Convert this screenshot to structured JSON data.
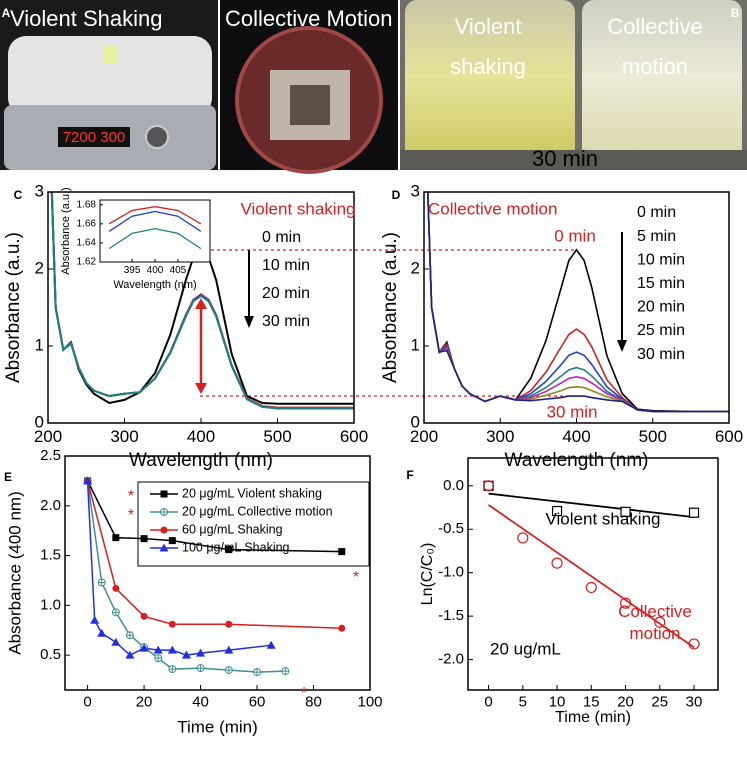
{
  "photos": {
    "labels": [
      "Violent Shaking",
      "Collective Motion",
      "Violent shaking",
      "Collective motion",
      "30 min"
    ]
  },
  "panel_labels": [
    "A",
    "B",
    "C",
    "D",
    "E",
    "F"
  ],
  "chart_data": [
    {
      "type": "line",
      "x_label": "Wavelength (nm)",
      "y_label": "Absorbance (a.u.)",
      "xlim": [
        200,
        600
      ],
      "ylim": [
        0,
        3
      ],
      "xticks": [
        200,
        300,
        400,
        500,
        600
      ],
      "yticks": [
        0,
        1,
        2,
        3
      ],
      "x": [
        205,
        210,
        220,
        230,
        240,
        250,
        260,
        280,
        300,
        320,
        340,
        360,
        380,
        390,
        400,
        410,
        420,
        440,
        460,
        480,
        500,
        550,
        600
      ],
      "series": [
        {
          "name": "0 min",
          "color": "#000000",
          "values": [
            3.0,
            1.5,
            0.95,
            1.05,
            0.7,
            0.5,
            0.38,
            0.26,
            0.3,
            0.4,
            0.65,
            1.15,
            1.85,
            2.15,
            2.25,
            2.15,
            1.85,
            0.9,
            0.35,
            0.26,
            0.25,
            0.25,
            0.25
          ]
        },
        {
          "name": "10 min",
          "color": "#d62020",
          "values": [
            3.0,
            1.5,
            0.95,
            1.05,
            0.72,
            0.52,
            0.42,
            0.35,
            0.38,
            0.4,
            0.58,
            0.92,
            1.4,
            1.6,
            1.67,
            1.6,
            1.4,
            0.75,
            0.32,
            0.22,
            0.2,
            0.2,
            0.2
          ]
        },
        {
          "name": "20 min",
          "color": "#2040d0",
          "values": [
            3.0,
            1.5,
            0.95,
            1.04,
            0.72,
            0.52,
            0.42,
            0.35,
            0.38,
            0.4,
            0.58,
            0.92,
            1.39,
            1.59,
            1.66,
            1.59,
            1.39,
            0.75,
            0.31,
            0.21,
            0.19,
            0.19,
            0.19
          ]
        },
        {
          "name": "30 min",
          "color": "#208080",
          "values": [
            3.0,
            1.5,
            0.95,
            1.03,
            0.72,
            0.52,
            0.42,
            0.35,
            0.38,
            0.4,
            0.58,
            0.91,
            1.38,
            1.58,
            1.65,
            1.58,
            1.38,
            0.74,
            0.31,
            0.21,
            0.19,
            0.19,
            0.19
          ]
        }
      ],
      "annotations": [
        {
          "text": "Violent shaking",
          "color": "#d62020"
        }
      ]
    },
    {
      "type": "line",
      "x_label": "Wavelength (nm)",
      "y_label": "Absorbance (a.u.)",
      "xlim": [
        388,
        412
      ],
      "ylim": [
        1.62,
        1.685
      ],
      "xticks": [
        395,
        400,
        405
      ],
      "yticks": [
        1.62,
        1.64,
        1.66,
        1.68
      ],
      "x": [
        390,
        395,
        400,
        405,
        410
      ],
      "series": [
        {
          "color": "#d62020",
          "values": [
            1.66,
            1.674,
            1.678,
            1.674,
            1.66
          ]
        },
        {
          "color": "#2040d0",
          "values": [
            1.652,
            1.668,
            1.673,
            1.668,
            1.652
          ]
        },
        {
          "color": "#208080",
          "values": [
            1.634,
            1.65,
            1.655,
            1.65,
            1.634
          ]
        }
      ]
    },
    {
      "type": "line",
      "x_label": "Wavelength (nm)",
      "y_label": "Absorbance (a.u.)",
      "xlim": [
        200,
        600
      ],
      "ylim": [
        0,
        3
      ],
      "xticks": [
        200,
        300,
        400,
        500,
        600
      ],
      "yticks": [
        0,
        1,
        2,
        3
      ],
      "x": [
        205,
        210,
        220,
        230,
        240,
        250,
        260,
        280,
        300,
        320,
        340,
        360,
        380,
        390,
        400,
        410,
        420,
        440,
        460,
        480,
        500,
        550,
        600
      ],
      "series": [
        {
          "name": "0 min",
          "color": "#000000",
          "values": [
            3.0,
            1.5,
            0.92,
            1.05,
            0.7,
            0.48,
            0.38,
            0.28,
            0.35,
            0.3,
            0.58,
            1.07,
            1.76,
            2.11,
            2.25,
            2.11,
            1.76,
            0.87,
            0.38,
            0.18,
            0.16,
            0.15,
            0.15
          ]
        },
        {
          "name": "5 min",
          "color": "#d62020",
          "values": [
            3.0,
            1.5,
            0.92,
            1.03,
            0.7,
            0.48,
            0.38,
            0.28,
            0.35,
            0.3,
            0.42,
            0.66,
            0.99,
            1.15,
            1.22,
            1.15,
            0.99,
            0.56,
            0.33,
            0.17,
            0.15,
            0.15,
            0.15
          ]
        },
        {
          "name": "10 min",
          "color": "#2040d0",
          "values": [
            3.0,
            1.5,
            0.92,
            1.0,
            0.7,
            0.48,
            0.38,
            0.28,
            0.35,
            0.3,
            0.38,
            0.54,
            0.76,
            0.88,
            0.92,
            0.88,
            0.76,
            0.47,
            0.31,
            0.17,
            0.15,
            0.15,
            0.15
          ]
        },
        {
          "name": "15 min",
          "color": "#208080",
          "values": [
            3.0,
            1.5,
            0.92,
            0.98,
            0.7,
            0.48,
            0.38,
            0.28,
            0.35,
            0.3,
            0.35,
            0.46,
            0.61,
            0.69,
            0.72,
            0.69,
            0.61,
            0.41,
            0.3,
            0.17,
            0.15,
            0.15,
            0.15
          ]
        },
        {
          "name": "20 min",
          "color": "#c020c0",
          "values": [
            3.0,
            1.5,
            0.92,
            0.97,
            0.7,
            0.48,
            0.38,
            0.28,
            0.35,
            0.3,
            0.33,
            0.41,
            0.52,
            0.58,
            0.6,
            0.58,
            0.52,
            0.38,
            0.3,
            0.17,
            0.15,
            0.15,
            0.15
          ]
        },
        {
          "name": "25 min",
          "color": "#8a8a20",
          "values": [
            3.0,
            1.5,
            0.92,
            0.95,
            0.7,
            0.48,
            0.38,
            0.28,
            0.35,
            0.3,
            0.31,
            0.36,
            0.42,
            0.46,
            0.47,
            0.46,
            0.42,
            0.34,
            0.29,
            0.17,
            0.15,
            0.15,
            0.15
          ]
        },
        {
          "name": "30 min",
          "color": "#202080",
          "values": [
            3.0,
            1.5,
            0.92,
            0.94,
            0.7,
            0.48,
            0.38,
            0.28,
            0.35,
            0.3,
            0.29,
            0.31,
            0.33,
            0.35,
            0.35,
            0.35,
            0.33,
            0.3,
            0.28,
            0.17,
            0.15,
            0.15,
            0.15
          ]
        }
      ],
      "annotations": [
        {
          "text": "Collective motion",
          "color": "#d62020"
        },
        {
          "text": "0 min",
          "color": "#d62020"
        },
        {
          "text": "30 min",
          "color": "#d62020"
        }
      ]
    },
    {
      "type": "line",
      "x_label": "Time (min)",
      "y_label": "Absorbance (400 nm)",
      "xlim": [
        -8,
        100
      ],
      "ylim": [
        0.15,
        2.5
      ],
      "xticks": [
        0,
        20,
        40,
        60,
        80,
        100
      ],
      "yticks": [
        0.5,
        {
          "value": 1,
          "label": "1.0"
        },
        1.5,
        {
          "value": 2,
          "label": "2.0"
        },
        2.5
      ],
      "series": [
        {
          "name": "20 μg/mL Violent shaking",
          "color": "#000000",
          "marker": "square",
          "x": [
            0,
            10,
            20,
            30,
            50,
            90
          ],
          "values": [
            2.25,
            1.68,
            1.67,
            1.65,
            1.56,
            1.54
          ]
        },
        {
          "name": "20 μg/mL Collective motion",
          "color": "#3f8f8f",
          "marker": "circle-cross",
          "x": [
            0,
            5,
            10,
            15,
            20,
            25,
            30,
            40,
            50,
            60,
            70
          ],
          "values": [
            2.25,
            1.23,
            0.93,
            0.7,
            0.58,
            0.47,
            0.36,
            0.37,
            0.35,
            0.33,
            0.34
          ]
        },
        {
          "name": "60 μg/mL Shaking",
          "color": "#d62020",
          "marker": "circle",
          "x": [
            0,
            10,
            20,
            30,
            50,
            90
          ],
          "values": [
            2.25,
            1.17,
            0.89,
            0.81,
            0.81,
            0.77
          ]
        },
        {
          "name": "100 μg/mL Shaking",
          "color": "#2030e0",
          "marker": "triangle",
          "x": [
            0,
            2.5,
            5,
            10,
            15,
            20,
            25,
            30,
            35,
            40,
            50,
            65
          ],
          "values": [
            2.25,
            0.85,
            0.72,
            0.63,
            0.5,
            0.57,
            0.55,
            0.55,
            0.5,
            0.52,
            0.55,
            0.6
          ]
        }
      ],
      "annotations": [
        {
          "text": "*",
          "color": "#d62020"
        },
        {
          "text": "*",
          "color": "#d62020"
        },
        {
          "text": "*",
          "color": "#d62020"
        },
        {
          "text": "*",
          "color": "#d62020"
        }
      ]
    },
    {
      "type": "scatter",
      "x_label": "Time (min)",
      "y_label": "Ln(C/C₀)",
      "xlim": [
        -3,
        33.5
      ],
      "ylim": [
        -2.35,
        0.32
      ],
      "xticks": [
        0,
        5,
        10,
        15,
        20,
        25,
        30
      ],
      "yticks": [
        {
          "value": 0,
          "label": "0.0"
        },
        -0.5,
        {
          "value": -1,
          "label": "-1.0"
        },
        -1.5,
        {
          "value": -2,
          "label": "-2.0"
        }
      ],
      "series": [
        {
          "name": "Violent shaking",
          "color": "#000000",
          "marker": "square-open",
          "x": [
            0,
            10,
            20,
            30
          ],
          "values": [
            0,
            -0.29,
            -0.3,
            -0.31
          ]
        },
        {
          "name": "Collective motion",
          "color": "#d62020",
          "marker": "circle-open",
          "x": [
            0,
            5,
            10,
            15,
            20,
            25,
            30
          ],
          "values": [
            0,
            -0.6,
            -0.89,
            -1.17,
            -1.35,
            -1.57,
            -1.82
          ]
        }
      ],
      "fits": [
        {
          "color": "#000000",
          "x": [
            0,
            30
          ],
          "values": [
            -0.09,
            -0.36
          ]
        },
        {
          "color": "#d62020",
          "x": [
            0,
            30
          ],
          "values": [
            -0.22,
            -1.86
          ]
        }
      ],
      "annotations": [
        {
          "text": "20 ug/mL",
          "color": "#000000"
        }
      ]
    }
  ]
}
